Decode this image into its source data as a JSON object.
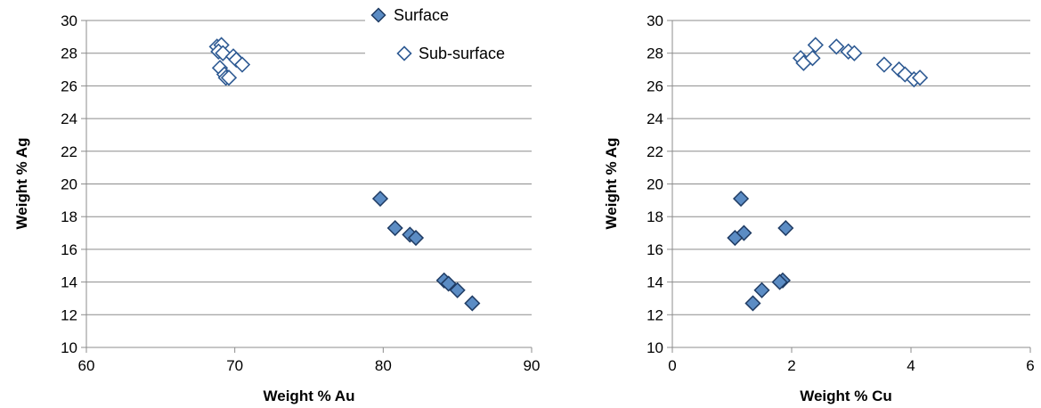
{
  "colors": {
    "surface_fill": "#5b8cc4",
    "surface_stroke": "#1f3b63",
    "subsurface_fill": "#ffffff",
    "subsurface_stroke": "#2e5a93",
    "grid": "#8c8c8c"
  },
  "chart_data": [
    {
      "type": "scatter",
      "title": "",
      "xlabel": "Weight % Au",
      "ylabel": "Weight % Ag",
      "xlim": [
        60,
        90
      ],
      "ylim": [
        10,
        30
      ],
      "xticks": [
        60,
        70,
        80,
        90
      ],
      "yticks": [
        10,
        12,
        14,
        16,
        18,
        20,
        22,
        24,
        26,
        28,
        30
      ],
      "grid": "horizontal",
      "legend": "top-right",
      "series": [
        {
          "name": "Surface",
          "marker": "diamond-filled",
          "points": [
            [
              79.8,
              19.1
            ],
            [
              80.8,
              17.3
            ],
            [
              81.8,
              16.9
            ],
            [
              82.2,
              16.7
            ],
            [
              84.1,
              14.1
            ],
            [
              84.4,
              13.9
            ],
            [
              85.0,
              13.5
            ],
            [
              86.0,
              12.7
            ]
          ]
        },
        {
          "name": "Sub-surface",
          "marker": "diamond-open",
          "points": [
            [
              68.8,
              28.4
            ],
            [
              69.1,
              28.5
            ],
            [
              68.9,
              28.1
            ],
            [
              69.2,
              28.0
            ],
            [
              69.9,
              27.8
            ],
            [
              70.1,
              27.6
            ],
            [
              70.5,
              27.3
            ],
            [
              69.0,
              27.1
            ],
            [
              69.3,
              26.7
            ],
            [
              69.4,
              26.5
            ],
            [
              69.6,
              26.5
            ]
          ]
        }
      ]
    },
    {
      "type": "scatter",
      "title": "",
      "xlabel": "Weight % Cu",
      "ylabel": "Weight % Ag",
      "xlim": [
        0,
        6
      ],
      "ylim": [
        10,
        30
      ],
      "xticks": [
        0,
        2,
        4,
        6
      ],
      "yticks": [
        10,
        12,
        14,
        16,
        18,
        20,
        22,
        24,
        26,
        28,
        30
      ],
      "grid": "horizontal",
      "legend": "none",
      "series": [
        {
          "name": "Surface",
          "marker": "diamond-filled",
          "points": [
            [
              1.15,
              19.1
            ],
            [
              1.2,
              17.0
            ],
            [
              1.05,
              16.7
            ],
            [
              1.9,
              17.3
            ],
            [
              1.85,
              14.1
            ],
            [
              1.8,
              14.0
            ],
            [
              1.5,
              13.5
            ],
            [
              1.35,
              12.7
            ]
          ]
        },
        {
          "name": "Sub-surface",
          "marker": "diamond-open",
          "points": [
            [
              2.15,
              27.7
            ],
            [
              2.2,
              27.4
            ],
            [
              2.35,
              27.7
            ],
            [
              2.4,
              28.5
            ],
            [
              2.75,
              28.4
            ],
            [
              2.95,
              28.1
            ],
            [
              3.05,
              28.0
            ],
            [
              3.55,
              27.3
            ],
            [
              3.8,
              27.0
            ],
            [
              3.9,
              26.7
            ],
            [
              4.05,
              26.4
            ],
            [
              4.15,
              26.5
            ]
          ]
        }
      ]
    }
  ]
}
